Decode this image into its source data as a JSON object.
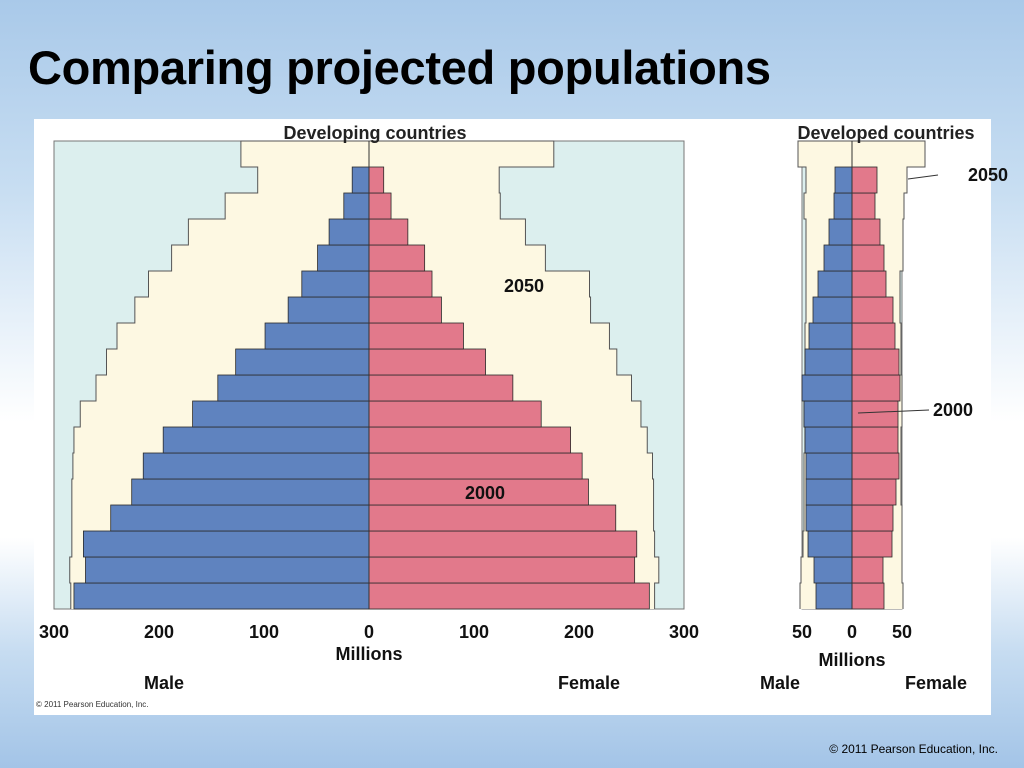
{
  "slide": {
    "title": "Comparing projected populations",
    "footer": "© 2011 Pearson Education, Inc."
  },
  "colors": {
    "male_2000": "#5f83bf",
    "female_2000": "#e2798b",
    "projection_2050": "#fdf8e2",
    "background_band": "#dcefee",
    "bar_outline": "#2a2a2a"
  },
  "chart_data": [
    {
      "type": "bar",
      "orientation": "horizontal",
      "subtype": "population-pyramid",
      "title": "Developing countries",
      "xlabel": "Millions",
      "left_label": "Male",
      "right_label": "Female",
      "xlim": [
        -300,
        300
      ],
      "x_ticks": [
        "300",
        "200",
        "100",
        "0",
        "100",
        "200",
        "300"
      ],
      "series": [
        {
          "name": "2000",
          "male": [
            281,
            270,
            272,
            246,
            226,
            215,
            196,
            168,
            144,
            127,
            99,
            77,
            64,
            49,
            38,
            24,
            16
          ],
          "female": [
            267,
            253,
            255,
            235,
            209,
            203,
            192,
            164,
            137,
            111,
            90,
            69,
            60,
            53,
            37,
            21,
            14
          ]
        },
        {
          "name": "2050",
          "male": [
            284,
            285,
            283,
            283,
            283,
            282,
            281,
            275,
            260,
            250,
            240,
            223,
            210,
            188,
            172,
            137,
            106,
            122
          ],
          "female": [
            272,
            276,
            272,
            271,
            271,
            270,
            265,
            259,
            250,
            236,
            229,
            211,
            210,
            168,
            149,
            125,
            124,
            176
          ]
        }
      ],
      "annotations": [
        {
          "text": "2050"
        },
        {
          "text": "2000"
        }
      ]
    },
    {
      "type": "bar",
      "orientation": "horizontal",
      "subtype": "population-pyramid",
      "title": "Developed countries",
      "xlabel": "Millions",
      "left_label": "Male",
      "right_label": "Female",
      "xlim": [
        -50,
        50
      ],
      "x_ticks": [
        "50",
        "0",
        "50"
      ],
      "series": [
        {
          "name": "2000",
          "male": [
            36,
            38,
            44,
            46,
            46,
            46,
            47,
            48,
            50,
            47,
            43,
            39,
            34,
            28,
            23,
            18,
            17
          ],
          "female": [
            32,
            31,
            40,
            41,
            44,
            47,
            46,
            46,
            48,
            47,
            43,
            41,
            34,
            32,
            28,
            23,
            25
          ]
        },
        {
          "name": "2050",
          "male": [
            52,
            51,
            49,
            48,
            48,
            48,
            47,
            48,
            48,
            47,
            47,
            46,
            46,
            46,
            46,
            48,
            46,
            54
          ],
          "female": [
            51,
            50,
            50,
            50,
            49,
            49,
            49,
            50,
            50,
            49,
            49,
            48,
            48,
            51,
            51,
            52,
            55,
            73
          ]
        }
      ],
      "annotations": [
        {
          "text": "2050"
        },
        {
          "text": "2000"
        }
      ]
    }
  ],
  "copyright_inner": "© 2011 Pearson Education, Inc."
}
